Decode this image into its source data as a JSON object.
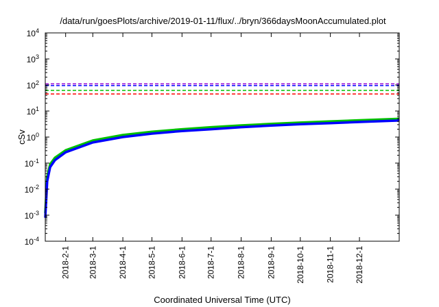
{
  "chart_data": {
    "type": "line",
    "title": "/data/run/goesPlots/archive/2019-01-11/flux/../bryn/366daysMoonAccumulated.plot",
    "xlabel": "Coordinated Universal Time (UTC)",
    "ylabel": "cSv",
    "yscale": "log",
    "ylim": [
      0.0001,
      10000
    ],
    "xlim": [
      "2018-01-11",
      "2019-01-11"
    ],
    "y_ticks": [
      {
        "base": "10",
        "exp": "-4",
        "value": 0.0001
      },
      {
        "base": "10",
        "exp": "-3",
        "value": 0.001
      },
      {
        "base": "10",
        "exp": "-2",
        "value": 0.01
      },
      {
        "base": "10",
        "exp": "-1",
        "value": 0.1
      },
      {
        "base": "10",
        "exp": "0",
        "value": 1
      },
      {
        "base": "10",
        "exp": "1",
        "value": 10
      },
      {
        "base": "10",
        "exp": "2",
        "value": 100
      },
      {
        "base": "10",
        "exp": "3",
        "value": 1000
      },
      {
        "base": "10",
        "exp": "4",
        "value": 10000
      }
    ],
    "x_ticks": [
      "2018-2-1",
      "2018-3-1",
      "2018-4-1",
      "2018-5-1",
      "2018-6-1",
      "2018-7-1",
      "2018-8-1",
      "2018-9-1",
      "2018-10-1",
      "2018-11-1",
      "2018-12-1"
    ],
    "grid": false,
    "series": [
      {
        "color": "#00c000",
        "style": "solid",
        "x": [
          "2018-01-11",
          "2018-01-13",
          "2018-01-16",
          "2018-01-21",
          "2018-02-01",
          "2018-03-01",
          "2018-04-01",
          "2018-05-01",
          "2018-06-01",
          "2018-07-01",
          "2018-08-01",
          "2018-09-01",
          "2018-10-01",
          "2018-11-01",
          "2018-12-01",
          "2019-01-11"
        ],
        "y": [
          0.0012,
          0.03,
          0.09,
          0.16,
          0.31,
          0.74,
          1.2,
          1.6,
          2.0,
          2.4,
          2.8,
          3.2,
          3.6,
          4.0,
          4.4,
          5.0
        ]
      },
      {
        "color": "#0000ff",
        "style": "solid",
        "x": [
          "2018-01-11",
          "2018-01-13",
          "2018-01-16",
          "2018-01-21",
          "2018-02-01",
          "2018-03-01",
          "2018-04-01",
          "2018-05-01",
          "2018-06-01",
          "2018-07-01",
          "2018-08-01",
          "2018-09-01",
          "2018-10-01",
          "2018-11-01",
          "2018-12-01",
          "2019-01-11"
        ],
        "y": [
          0.0008,
          0.02,
          0.07,
          0.13,
          0.26,
          0.62,
          1.0,
          1.35,
          1.7,
          2.0,
          2.4,
          2.75,
          3.1,
          3.4,
          3.8,
          4.3
        ]
      },
      {
        "color": "#9400d3",
        "style": "dashed",
        "constant": 110
      },
      {
        "color": "#0000ff",
        "style": "dashed",
        "constant": 95
      },
      {
        "color": "#00c000",
        "style": "dashed",
        "constant": 62
      },
      {
        "color": "#ff0000",
        "style": "dashed",
        "constant": 45
      }
    ]
  }
}
